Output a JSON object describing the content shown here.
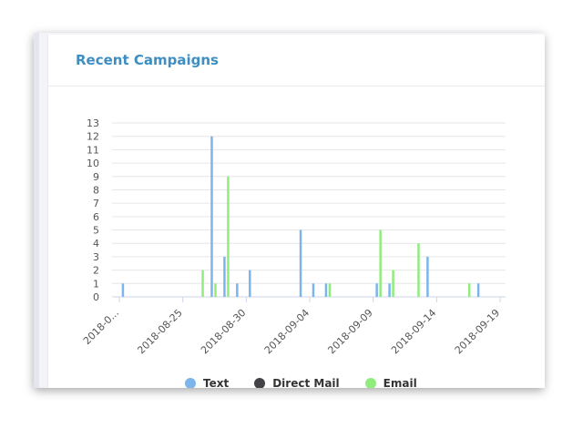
{
  "card": {
    "title": "Recent Campaigns"
  },
  "colors": {
    "text": "#7cb5ec",
    "direct_mail": "#434348",
    "email": "#90ed7d",
    "title": "#3e8ec2"
  },
  "chart_data": {
    "type": "bar",
    "ylim": [
      0,
      13
    ],
    "yticks": [
      0,
      1,
      2,
      3,
      4,
      5,
      6,
      7,
      8,
      9,
      10,
      11,
      12,
      13
    ],
    "xlim": [
      "2018-08-20",
      "2018-09-20"
    ],
    "xticks": [
      "2018-0...",
      "2018-08-25",
      "2018-08-30",
      "2018-09-04",
      "2018-09-09",
      "2018-09-14",
      "2018-09-19"
    ],
    "grid": true,
    "legend_position": "bottom",
    "series": [
      {
        "name": "Text",
        "color": "#7cb5ec",
        "points": [
          {
            "x": "2018-08-21",
            "y": 1
          },
          {
            "x": "2018-08-28",
            "y": 12
          },
          {
            "x": "2018-08-29",
            "y": 3
          },
          {
            "x": "2018-08-30",
            "y": 1
          },
          {
            "x": "2018-08-31",
            "y": 2
          },
          {
            "x": "2018-09-04",
            "y": 5
          },
          {
            "x": "2018-09-05",
            "y": 1
          },
          {
            "x": "2018-09-06",
            "y": 1
          },
          {
            "x": "2018-09-10",
            "y": 1
          },
          {
            "x": "2018-09-11",
            "y": 1
          },
          {
            "x": "2018-09-14",
            "y": 3
          },
          {
            "x": "2018-09-18",
            "y": 1
          }
        ]
      },
      {
        "name": "Direct Mail",
        "color": "#434348",
        "points": []
      },
      {
        "name": "Email",
        "color": "#90ed7d",
        "points": [
          {
            "x": "2018-08-27",
            "y": 2
          },
          {
            "x": "2018-08-28",
            "y": 1
          },
          {
            "x": "2018-08-29",
            "y": 9
          },
          {
            "x": "2018-09-06",
            "y": 1
          },
          {
            "x": "2018-09-10",
            "y": 5
          },
          {
            "x": "2018-09-11",
            "y": 2
          },
          {
            "x": "2018-09-13",
            "y": 4
          },
          {
            "x": "2018-09-17",
            "y": 1
          }
        ]
      }
    ]
  }
}
